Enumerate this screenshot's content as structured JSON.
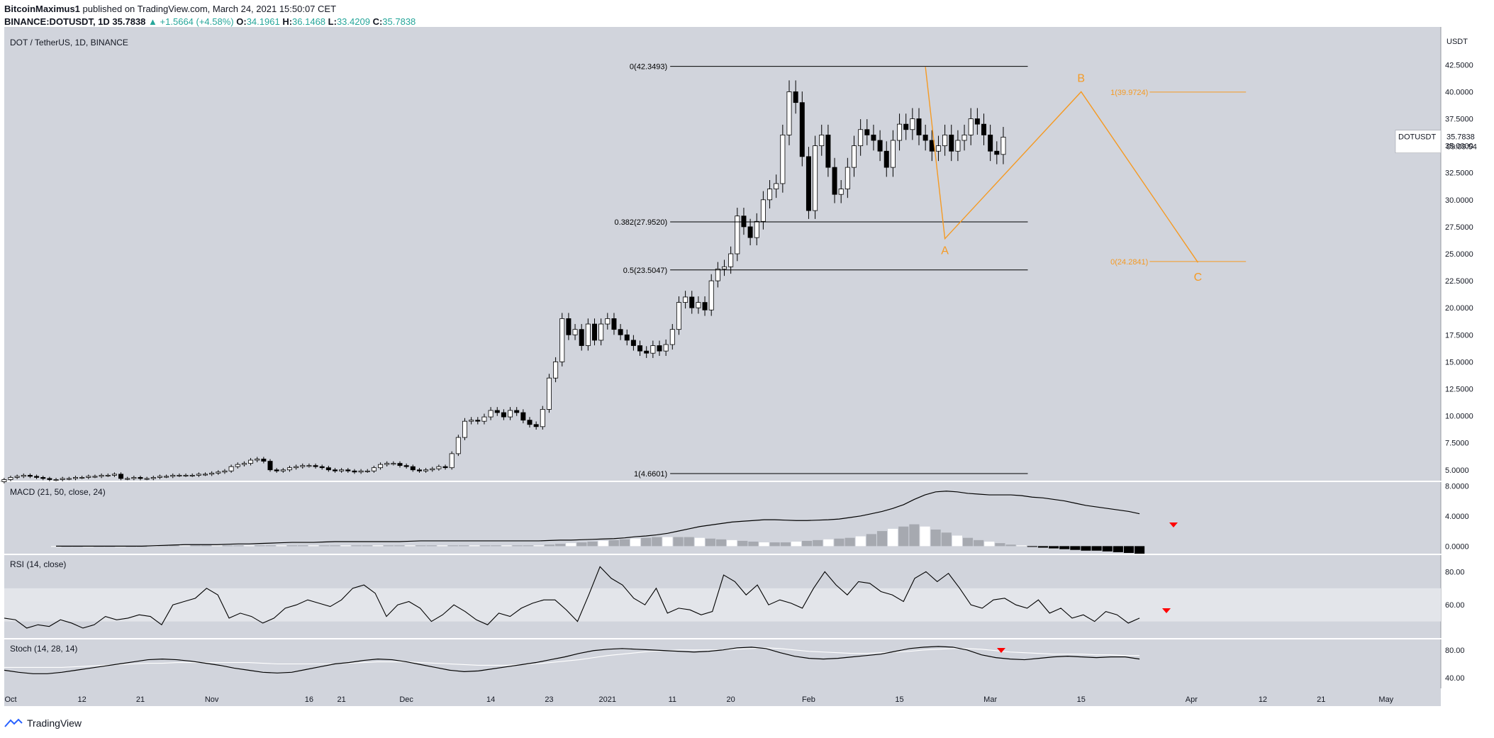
{
  "header": {
    "publisher": "BitcoinMaximus1",
    "published_text": "published on TradingView.com, March 24, 2021 15:50:07 CET",
    "symbol_line": "BINANCE:DOTUSDT, 1D",
    "last": "35.7838",
    "change": "+1.5664 (+4.58%)",
    "o_label": "O:",
    "o": "34.1961",
    "h_label": "H:",
    "h": "36.1468",
    "l_label": "L:",
    "l": "33.4209",
    "c_label": "C:",
    "c": "35.7838"
  },
  "footer": {
    "brand": "TradingView"
  },
  "chart_data": [
    {
      "type": "candlestick",
      "title": "DOT / TetherUS, 1D, BINANCE",
      "currency": "USDT",
      "ylim": [
        4,
        46
      ],
      "yticks": [
        "5.0000",
        "7.5000",
        "10.0000",
        "12.5000",
        "15.0000",
        "17.5000",
        "20.0000",
        "22.5000",
        "25.0000",
        "27.5000",
        "30.0000",
        "32.5000",
        "35.0000",
        "37.5000",
        "40.0000",
        "42.5000"
      ],
      "xticks": [
        "Oct",
        "12",
        "21",
        "Nov",
        "16",
        "21",
        "Dec",
        "14",
        "23",
        "2021",
        "11",
        "20",
        "Feb",
        "15",
        "Mar",
        "15",
        "Apr",
        "12",
        "21",
        "May"
      ],
      "price_label": "DOTUSDT",
      "price_value": "35.7838",
      "countdown": "09:09:54",
      "fib_levels": [
        {
          "label": "0(42.3493)",
          "value": 42.3493
        },
        {
          "label": "0.382(27.9520)",
          "value": 27.952
        },
        {
          "label": "0.5(23.5047)",
          "value": 23.5047
        },
        {
          "label": "1(4.6601)",
          "value": 4.6601
        }
      ],
      "projection_levels": [
        {
          "label": "1(39.9724)",
          "value": 39.9724
        },
        {
          "label": "0(24.2841)",
          "value": 24.2841
        }
      ],
      "wave_labels": [
        "A",
        "B",
        "C"
      ],
      "wave_points": [
        {
          "label": "",
          "date": "2021-02-19",
          "value": 42.3
        },
        {
          "label": "A",
          "date": "2021-02-22",
          "value": 26.4
        },
        {
          "label": "B",
          "date": "2021-03-15",
          "value": 40.0
        },
        {
          "label": "C",
          "date": "2021-04-02",
          "value": 24.2
        }
      ],
      "candles_close": [
        4.5,
        4.4,
        4.3,
        4.2,
        4.3,
        4.2,
        4.1,
        4.0,
        3.9,
        4.1,
        4.3,
        4.4,
        4.5,
        4.4,
        4.3,
        4.2,
        4.1,
        4.1,
        4.2,
        4.2,
        4.3,
        4.3,
        4.4,
        4.4,
        4.5,
        4.5,
        4.6,
        4.2,
        4.2,
        4.3,
        4.2,
        4.2,
        4.3,
        4.4,
        4.4,
        4.5,
        4.5,
        4.5,
        4.5,
        4.6,
        4.6,
        4.7,
        4.8,
        4.9,
        5.3,
        5.5,
        5.6,
        5.9,
        6.0,
        5.8,
        5.0,
        4.9,
        5.0,
        5.2,
        5.3,
        5.4,
        5.4,
        5.3,
        5.2,
        5.0,
        4.9,
        5.0,
        4.9,
        4.8,
        4.9,
        4.9,
        5.2,
        5.5,
        5.6,
        5.6,
        5.4,
        5.3,
        5.0,
        4.9,
        5.0,
        5.1,
        5.3,
        5.2,
        6.5,
        8.0,
        9.5,
        9.6,
        9.5,
        9.9,
        10.5,
        10.3,
        9.9,
        10.5,
        10.3,
        9.6,
        9.2,
        9.0,
        10.6,
        13.5,
        15.0,
        19.0,
        17.5,
        18.0,
        16.5,
        18.5,
        17.0,
        18.5,
        19.0,
        18.0,
        17.5,
        17.0,
        16.5,
        16.0,
        15.8,
        16.5,
        16.0,
        16.6,
        18.0,
        20.5,
        21.0,
        20.0,
        20.5,
        19.8,
        22.5,
        23.6,
        23.8,
        25.0,
        28.5,
        27.5,
        26.5,
        28.0,
        30.0,
        31.0,
        31.5,
        36.0,
        40.0,
        39.0,
        34.0,
        29.0,
        35.0,
        36.0,
        33.0,
        30.5,
        31.0,
        33.0,
        35.0,
        36.5,
        36.0,
        35.5,
        34.5,
        33.0,
        35.5,
        37.0,
        36.5,
        37.5,
        36.0,
        35.5,
        34.5,
        35.0,
        36.0,
        34.5,
        35.5,
        36.0,
        37.5,
        37.0,
        36.0,
        34.5,
        34.2,
        35.8
      ],
      "series": [
        {
          "name": "",
          "kind": "fib_lines"
        }
      ]
    },
    {
      "type": "line",
      "title": "MACD (21, 50, close, 24)",
      "ylim": [
        -1,
        8.5
      ],
      "yticks": [
        "0.0000",
        "4.0000",
        "8.0000"
      ],
      "macd_line": [
        0,
        0,
        0,
        0,
        0,
        0,
        0,
        0,
        0,
        0.05,
        0.1,
        0.15,
        0.2,
        0.2,
        0.2,
        0.2,
        0.25,
        0.3,
        0.3,
        0.35,
        0.4,
        0.45,
        0.5,
        0.5,
        0.5,
        0.55,
        0.6,
        0.6,
        0.6,
        0.6,
        0.6,
        0.6,
        0.6,
        0.65,
        0.7,
        0.7,
        0.7,
        0.7,
        0.7,
        0.7,
        0.7,
        0.7,
        0.7,
        0.7,
        0.7,
        0.7,
        0.75,
        0.8,
        0.8,
        0.85,
        0.9,
        0.95,
        1.0,
        1.1,
        1.25,
        1.35,
        1.5,
        1.7,
        2.0,
        2.3,
        2.6,
        2.8,
        3.0,
        3.2,
        3.3,
        3.4,
        3.5,
        3.5,
        3.45,
        3.4,
        3.4,
        3.45,
        3.5,
        3.6,
        3.8,
        4.0,
        4.3,
        4.6,
        5.0,
        5.5,
        6.2,
        6.8,
        7.2,
        7.3,
        7.2,
        7.0,
        6.9,
        6.8,
        6.8,
        6.8,
        6.7,
        6.5,
        6.4,
        6.2,
        6.0,
        5.7,
        5.4,
        5.2,
        5.0,
        4.8,
        4.6,
        4.3
      ],
      "histogram": [
        0,
        0,
        0,
        0,
        0,
        0,
        0,
        0,
        0,
        0.1,
        0.1,
        0.1,
        0.1,
        0.1,
        0.1,
        0.1,
        0.1,
        0.1,
        0.1,
        0.1,
        0.1,
        0.1,
        0.1,
        0.1,
        0.1,
        0.1,
        0.1,
        0.1,
        0.1,
        0.1,
        0.1,
        0.1,
        0.1,
        0.1,
        0.1,
        0.1,
        0.1,
        0.1,
        0.1,
        0.1,
        0.1,
        0.1,
        0.1,
        0.1,
        0.1,
        0.1,
        0.2,
        0.3,
        0.4,
        0.5,
        0.6,
        0.7,
        0.8,
        0.9,
        1.0,
        1.1,
        1.2,
        1.2,
        1.2,
        1.2,
        1.1,
        1.0,
        0.9,
        0.8,
        0.7,
        0.6,
        0.5,
        0.5,
        0.5,
        0.6,
        0.7,
        0.8,
        0.9,
        1.0,
        1.1,
        1.3,
        1.6,
        2.0,
        2.3,
        2.6,
        2.9,
        2.6,
        2.2,
        1.8,
        1.4,
        1.1,
        0.8,
        0.6,
        0.4,
        0.2,
        0.1,
        -0.1,
        -0.2,
        -0.3,
        -0.4,
        -0.5,
        -0.6,
        -0.6,
        -0.7,
        -0.8,
        -0.9,
        -1.0
      ]
    },
    {
      "type": "line",
      "title": "RSI (14, close)",
      "ylim": [
        40,
        90
      ],
      "yticks": [
        "60.00",
        "80.00"
      ],
      "values": [
        52,
        51,
        46,
        48,
        47,
        51,
        49,
        46,
        48,
        53,
        51,
        52,
        54,
        53,
        48,
        60,
        62,
        64,
        70,
        66,
        52,
        55,
        53,
        49,
        52,
        58,
        60,
        63,
        61,
        59,
        63,
        70,
        72,
        67,
        53,
        60,
        62,
        58,
        50,
        54,
        60,
        56,
        51,
        48,
        55,
        53,
        58,
        61,
        63,
        63,
        57,
        50,
        66,
        83,
        76,
        72,
        64,
        60,
        70,
        55,
        58,
        57,
        54,
        56,
        78,
        74,
        66,
        72,
        60,
        63,
        61,
        58,
        70,
        80,
        72,
        66,
        74,
        73,
        68,
        66,
        62,
        76,
        80,
        74,
        79,
        70,
        60,
        58,
        63,
        64,
        60,
        58,
        63,
        55,
        58,
        52,
        54,
        50,
        56,
        54,
        49,
        52
      ]
    },
    {
      "type": "line",
      "title": "Stoch (14, 28, 14)",
      "ylim": [
        25,
        95
      ],
      "yticks": [
        "40.00",
        "80.00"
      ],
      "k": [
        51,
        48,
        46,
        46,
        48,
        51,
        54,
        57,
        60,
        63,
        66,
        67,
        66,
        64,
        61,
        58,
        54,
        51,
        48,
        47,
        48,
        52,
        56,
        60,
        62,
        65,
        67,
        66,
        63,
        59,
        55,
        51,
        49,
        50,
        53,
        56,
        59,
        62,
        66,
        70,
        75,
        79,
        81,
        82,
        81,
        80,
        79,
        78,
        77,
        78,
        80,
        83,
        84,
        82,
        76,
        71,
        68,
        67,
        68,
        70,
        72,
        74,
        78,
        82,
        84,
        85,
        84,
        80,
        73,
        69,
        67,
        66,
        68,
        70,
        71,
        70,
        69,
        70,
        70,
        67
      ],
      "d": [
        55,
        55,
        55,
        55,
        55,
        56,
        57,
        58,
        59,
        60,
        61,
        61,
        62,
        62,
        62,
        62,
        62,
        62,
        61,
        60,
        60,
        60,
        60,
        60,
        61,
        62,
        63,
        63,
        63,
        62,
        61,
        60,
        59,
        58,
        58,
        58,
        59,
        60,
        62,
        64,
        66,
        69,
        72,
        74,
        76,
        78,
        79,
        80,
        80,
        80,
        80,
        81,
        82,
        83,
        82,
        80,
        78,
        77,
        76,
        75,
        75,
        76,
        77,
        78,
        80,
        81,
        82,
        82,
        81,
        79,
        77,
        76,
        75,
        74,
        74,
        74,
        73,
        73,
        72,
        72
      ]
    },
    {
      "type": "markers",
      "annotations": [
        "macd-bearish-arrow",
        "rsi-bearish-arrow",
        "stoch-bearish-arrow"
      ],
      "colors": {
        "bg": "#d1d4dc",
        "bull": "#ffffff",
        "bear": "#000000",
        "fib": "#000000",
        "wave": "#f59a23",
        "sell": "#ff0000",
        "hist_grey": "#a6a9b0",
        "band": "#e3e5ea",
        "axis_text": "#131722"
      }
    }
  ]
}
